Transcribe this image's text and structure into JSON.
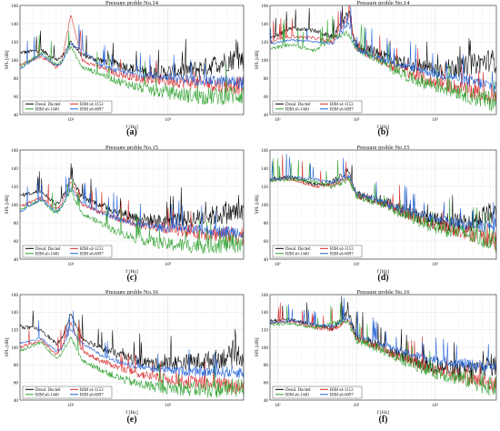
{
  "figure": {
    "grid": true,
    "panels": [
      {
        "id": "a",
        "label": "(a)",
        "title": "Pressure proble No.14",
        "ylabel": "SPL [dB]",
        "xlabel": "f [Hz]",
        "xscale": "log",
        "ylim": [
          40,
          160
        ],
        "yticks": [
          40,
          60,
          80,
          100,
          120,
          140,
          160
        ],
        "xticks": [
          "10²",
          "10³"
        ],
        "legend_location": "lower-left"
      },
      {
        "id": "b",
        "label": "(b)",
        "title": "Pressure proble No.14",
        "ylabel": "SPL [dB]",
        "xlabel": "f [Hz]",
        "xscale": "log",
        "ylim": [
          40,
          160
        ],
        "yticks": [
          40,
          60,
          80,
          100,
          120,
          140,
          160
        ],
        "xticks": [
          "10¹",
          "10²",
          "10³"
        ],
        "legend_location": "lower-left"
      },
      {
        "id": "c",
        "label": "(c)",
        "title": "Pressure proble No.15",
        "ylabel": "SPL [dB]",
        "xlabel": "f [Hz]",
        "xscale": "log",
        "ylim": [
          40,
          160
        ],
        "yticks": [
          40,
          60,
          80,
          100,
          120,
          140,
          160
        ],
        "xticks": [
          "10²",
          "10³"
        ],
        "legend_location": "lower-left"
      },
      {
        "id": "d",
        "label": "(d)",
        "title": "Pressure proble No.15",
        "ylabel": "SPL [dB]",
        "xlabel": "f [Hz]",
        "xscale": "log",
        "ylim": [
          40,
          160
        ],
        "yticks": [
          40,
          60,
          80,
          100,
          120,
          140,
          160
        ],
        "xticks": [
          "10¹",
          "10²",
          "10³"
        ],
        "legend_location": "lower-left"
      },
      {
        "id": "e",
        "label": "(e)",
        "title": "Pressure proble No.16",
        "ylabel": "SPL [dB]",
        "xlabel": "f [Hz]",
        "xscale": "log",
        "ylim": [
          40,
          160
        ],
        "yticks": [
          40,
          60,
          80,
          100,
          120,
          140,
          160
        ],
        "xticks": [
          "10²",
          "10³"
        ],
        "legend_location": "lower-left"
      },
      {
        "id": "f",
        "label": "(f)",
        "title": "Pressure proble No.16",
        "ylabel": "SPL [dB]",
        "xlabel": "f [Hz]",
        "xscale": "log",
        "ylim": [
          40,
          160
        ],
        "yticks": [
          40,
          60,
          80,
          100,
          120,
          140,
          160
        ],
        "xticks": [
          "10¹",
          "10²",
          "10³"
        ],
        "legend_location": "lower-left"
      }
    ],
    "series": [
      {
        "name": "Desul. Ducted",
        "color": "#000000"
      },
      {
        "name": "RIM s4-1153",
        "color": "#d62728"
      },
      {
        "name": "RIM s6-1440",
        "color": "#2ca02c"
      },
      {
        "name": "RIM s6-6097",
        "color": "#1f5fd6"
      }
    ]
  },
  "chart_data": [
    {
      "type": "line",
      "panel": "a",
      "title": "Pressure proble No.14",
      "xlabel": "f [Hz]",
      "ylabel": "SPL [dB]",
      "xscale": "log",
      "xlim": [
        30,
        6000
      ],
      "ylim": [
        40,
        160
      ],
      "series": [
        {
          "name": "Desul. Ducted",
          "x": [
            30,
            50,
            70,
            80,
            100,
            130,
            200,
            300,
            500,
            800,
            1000,
            2000,
            3000,
            5000,
            6000
          ],
          "y": [
            108,
            111,
            100,
            103,
            120,
            105,
            100,
            96,
            88,
            86,
            87,
            90,
            95,
            102,
            100
          ]
        },
        {
          "name": "RIM s4-1153",
          "x": [
            30,
            50,
            70,
            80,
            100,
            130,
            200,
            300,
            500,
            800,
            1000,
            2000,
            3000,
            5000,
            6000
          ],
          "y": [
            95,
            104,
            92,
            97,
            150,
            100,
            92,
            85,
            80,
            78,
            77,
            75,
            73,
            72,
            72
          ]
        },
        {
          "name": "RIM s6-1440",
          "x": [
            30,
            50,
            70,
            80,
            100,
            130,
            200,
            300,
            500,
            800,
            1000,
            2000,
            3000,
            5000,
            6000
          ],
          "y": [
            92,
            108,
            95,
            98,
            115,
            92,
            85,
            77,
            70,
            65,
            64,
            60,
            60,
            62,
            62
          ]
        },
        {
          "name": "RIM s6-6097",
          "x": [
            30,
            50,
            70,
            80,
            100,
            130,
            200,
            300,
            500,
            800,
            1000,
            2000,
            3000,
            5000,
            6000
          ],
          "y": [
            90,
            106,
            94,
            96,
            118,
            110,
            95,
            88,
            84,
            82,
            81,
            78,
            77,
            76,
            75
          ]
        }
      ]
    },
    {
      "type": "line",
      "panel": "b",
      "title": "Pressure proble No.14",
      "xlabel": "f [Hz]",
      "ylabel": "SPL [dB]",
      "xscale": "log",
      "xlim": [
        8,
        6000
      ],
      "ylim": [
        40,
        160
      ],
      "series": [
        {
          "name": "Desul. Ducted",
          "x": [
            8,
            15,
            30,
            50,
            80,
            100,
            200,
            300,
            500,
            1000,
            2000,
            3000,
            5000,
            6000
          ],
          "y": [
            123,
            135,
            132,
            125,
            152,
            115,
            108,
            100,
            95,
            90,
            92,
            95,
            100,
            98
          ]
        },
        {
          "name": "RIM s4-1153",
          "x": [
            8,
            15,
            30,
            50,
            80,
            100,
            200,
            300,
            500,
            1000,
            2000,
            3000,
            5000,
            6000
          ],
          "y": [
            120,
            126,
            124,
            120,
            148,
            112,
            100,
            92,
            85,
            75,
            70,
            65,
            60,
            58
          ]
        },
        {
          "name": "RIM s6-1440",
          "x": [
            8,
            15,
            30,
            50,
            80,
            100,
            200,
            300,
            500,
            1000,
            2000,
            3000,
            5000,
            6000
          ],
          "y": [
            112,
            117,
            110,
            125,
            130,
            112,
            100,
            90,
            80,
            72,
            66,
            60,
            55,
            55
          ]
        },
        {
          "name": "RIM s6-6097",
          "x": [
            8,
            15,
            30,
            50,
            80,
            100,
            200,
            300,
            500,
            1000,
            2000,
            3000,
            5000,
            6000
          ],
          "y": [
            118,
            122,
            120,
            118,
            140,
            112,
            102,
            96,
            92,
            85,
            80,
            76,
            72,
            70
          ]
        }
      ]
    },
    {
      "type": "line",
      "panel": "c",
      "title": "Pressure proble No.15",
      "xlabel": "f [Hz]",
      "ylabel": "SPL [dB]",
      "xscale": "log",
      "xlim": [
        30,
        6000
      ],
      "ylim": [
        40,
        160
      ],
      "series": [
        {
          "name": "Desul. Ducted",
          "x": [
            30,
            50,
            70,
            80,
            100,
            130,
            200,
            300,
            500,
            800,
            1000,
            2000,
            3000,
            5000,
            6000
          ],
          "y": [
            110,
            115,
            100,
            105,
            130,
            108,
            100,
            92,
            85,
            82,
            83,
            85,
            88,
            92,
            90
          ]
        },
        {
          "name": "RIM s4-1153",
          "x": [
            30,
            50,
            70,
            80,
            100,
            130,
            200,
            300,
            500,
            800,
            1000,
            2000,
            3000,
            5000,
            6000
          ],
          "y": [
            98,
            108,
            95,
            100,
            125,
            100,
            92,
            85,
            78,
            75,
            74,
            70,
            68,
            66,
            66
          ]
        },
        {
          "name": "RIM s6-1440",
          "x": [
            30,
            50,
            70,
            80,
            100,
            130,
            200,
            300,
            500,
            800,
            1000,
            2000,
            3000,
            5000,
            6000
          ],
          "y": [
            95,
            105,
            90,
            96,
            115,
            90,
            80,
            70,
            62,
            58,
            56,
            55,
            56,
            58,
            58
          ]
        },
        {
          "name": "RIM s6-6097",
          "x": [
            30,
            50,
            70,
            80,
            100,
            130,
            200,
            300,
            500,
            800,
            1000,
            2000,
            3000,
            5000,
            6000
          ],
          "y": [
            92,
            106,
            92,
            97,
            118,
            102,
            92,
            84,
            78,
            75,
            74,
            72,
            71,
            70,
            70
          ]
        }
      ]
    },
    {
      "type": "line",
      "panel": "d",
      "title": "Pressure proble No.15",
      "xlabel": "f [Hz]",
      "ylabel": "SPL [dB]",
      "xscale": "log",
      "xlim": [
        8,
        6000
      ],
      "ylim": [
        40,
        160
      ],
      "series": [
        {
          "name": "Desul. Ducted",
          "x": [
            8,
            15,
            30,
            50,
            80,
            100,
            200,
            300,
            500,
            1000,
            2000,
            3000,
            5000,
            6000
          ],
          "y": [
            128,
            130,
            122,
            125,
            138,
            112,
            105,
            98,
            90,
            82,
            80,
            82,
            90,
            88
          ]
        },
        {
          "name": "RIM s4-1153",
          "x": [
            8,
            15,
            30,
            50,
            80,
            100,
            200,
            300,
            500,
            1000,
            2000,
            3000,
            5000,
            6000
          ],
          "y": [
            127,
            128,
            120,
            122,
            130,
            110,
            103,
            96,
            88,
            78,
            72,
            68,
            62,
            60
          ]
        },
        {
          "name": "RIM s6-1440",
          "x": [
            8,
            15,
            30,
            50,
            80,
            100,
            200,
            300,
            500,
            1000,
            2000,
            3000,
            5000,
            6000
          ],
          "y": [
            126,
            128,
            125,
            120,
            128,
            110,
            102,
            94,
            86,
            76,
            70,
            66,
            60,
            58
          ]
        },
        {
          "name": "RIM s6-6097",
          "x": [
            8,
            15,
            30,
            50,
            80,
            100,
            200,
            300,
            500,
            1000,
            2000,
            3000,
            5000,
            6000
          ],
          "y": [
            127,
            130,
            128,
            124,
            132,
            112,
            104,
            97,
            91,
            84,
            80,
            77,
            76,
            75
          ]
        }
      ]
    },
    {
      "type": "line",
      "panel": "e",
      "title": "Pressure proble No.16",
      "xlabel": "f [Hz]",
      "ylabel": "SPL [dB]",
      "xscale": "log",
      "xlim": [
        30,
        6000
      ],
      "ylim": [
        40,
        160
      ],
      "series": [
        {
          "name": "Desul. Ducted",
          "x": [
            30,
            50,
            70,
            80,
            100,
            130,
            200,
            300,
            500,
            800,
            1000,
            2000,
            3000,
            5000,
            6000
          ],
          "y": [
            124,
            120,
            104,
            108,
            138,
            110,
            100,
            92,
            85,
            80,
            82,
            84,
            86,
            92,
            90
          ]
        },
        {
          "name": "RIM s4-1153",
          "x": [
            30,
            50,
            70,
            80,
            100,
            130,
            200,
            300,
            500,
            800,
            1000,
            2000,
            3000,
            5000,
            6000
          ],
          "y": [
            100,
            108,
            92,
            98,
            128,
            96,
            85,
            78,
            70,
            65,
            64,
            60,
            58,
            56,
            56
          ]
        },
        {
          "name": "RIM s6-1440",
          "x": [
            30,
            50,
            70,
            80,
            100,
            130,
            200,
            300,
            500,
            800,
            1000,
            2000,
            3000,
            5000,
            6000
          ],
          "y": [
            96,
            106,
            88,
            92,
            112,
            85,
            75,
            66,
            58,
            55,
            54,
            52,
            52,
            54,
            54
          ]
        },
        {
          "name": "RIM s6-6097",
          "x": [
            30,
            50,
            70,
            80,
            100,
            130,
            200,
            300,
            500,
            800,
            1000,
            2000,
            3000,
            5000,
            6000
          ],
          "y": [
            105,
            110,
            96,
            98,
            120,
            105,
            92,
            84,
            78,
            75,
            74,
            72,
            72,
            72,
            72
          ]
        }
      ]
    },
    {
      "type": "line",
      "panel": "f",
      "title": "Pressure proble No.16",
      "xlabel": "f [Hz]",
      "ylabel": "SPL [dB]",
      "xscale": "log",
      "xlim": [
        8,
        6000
      ],
      "ylim": [
        40,
        160
      ],
      "series": [
        {
          "name": "Desul. Ducted",
          "x": [
            8,
            15,
            30,
            50,
            80,
            100,
            200,
            300,
            500,
            1000,
            2000,
            3000,
            5000,
            6000
          ],
          "y": [
            130,
            132,
            125,
            122,
            140,
            112,
            102,
            94,
            86,
            78,
            74,
            74,
            80,
            80
          ]
        },
        {
          "name": "RIM s4-1153",
          "x": [
            8,
            15,
            30,
            50,
            80,
            100,
            200,
            300,
            500,
            1000,
            2000,
            3000,
            5000,
            6000
          ],
          "y": [
            128,
            130,
            122,
            120,
            132,
            110,
            100,
            92,
            84,
            74,
            68,
            64,
            58,
            56
          ]
        },
        {
          "name": "RIM s6-1440",
          "x": [
            8,
            15,
            30,
            50,
            80,
            100,
            200,
            300,
            500,
            1000,
            2000,
            3000,
            5000,
            6000
          ],
          "y": [
            126,
            127,
            122,
            128,
            128,
            108,
            98,
            90,
            82,
            72,
            66,
            62,
            56,
            55
          ]
        },
        {
          "name": "RIM s6-6097",
          "x": [
            8,
            15,
            30,
            50,
            80,
            100,
            200,
            300,
            500,
            1000,
            2000,
            3000,
            5000,
            6000
          ],
          "y": [
            128,
            130,
            126,
            124,
            134,
            114,
            105,
            98,
            92,
            86,
            82,
            80,
            78,
            78
          ]
        }
      ]
    }
  ]
}
